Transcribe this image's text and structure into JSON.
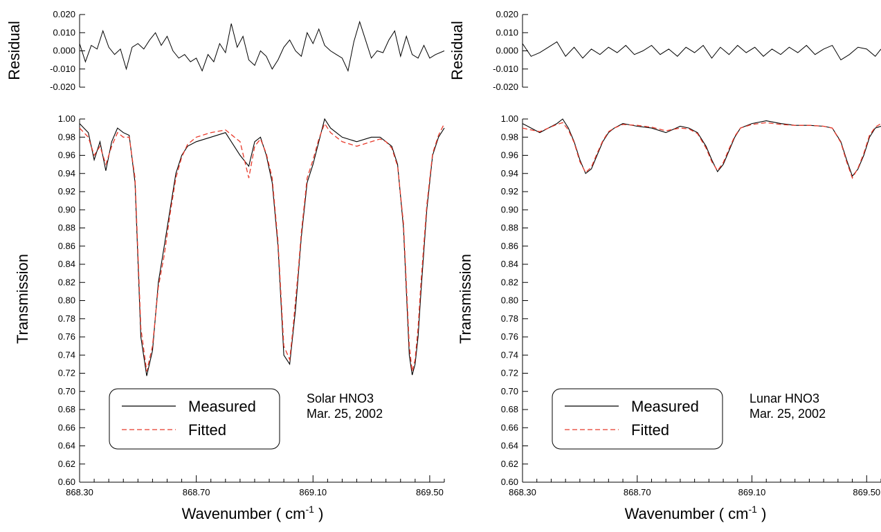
{
  "chart_data": [
    {
      "panel": "left",
      "type": "line",
      "xlabel": "Wavenumber",
      "xlabel_unit": "cm",
      "xlabel_unit_sup": "-1",
      "ylabel": "Transmission",
      "xlim": [
        868.3,
        869.55
      ],
      "ylim": [
        0.6,
        1.0
      ],
      "xticks": [
        "868.30",
        "868.70",
        "869.10",
        "869.50"
      ],
      "yticks": [
        "0.60",
        "0.62",
        "0.64",
        "0.66",
        "0.68",
        "0.70",
        "0.72",
        "0.74",
        "0.76",
        "0.78",
        "0.80",
        "0.82",
        "0.84",
        "0.86",
        "0.88",
        "0.90",
        "0.92",
        "0.94",
        "0.96",
        "0.98",
        "1.00"
      ],
      "annotation": [
        "Solar HNO3",
        "Mar. 25, 2002"
      ],
      "legend": {
        "position": "bottom-left",
        "entries": [
          "Measured",
          "Fitted"
        ]
      },
      "colors": {
        "measured": "#000000",
        "fitted": "#e8392a"
      },
      "series": [
        {
          "name": "Measured",
          "style": "solid",
          "x": [
            868.3,
            868.33,
            868.35,
            868.37,
            868.39,
            868.41,
            868.43,
            868.45,
            868.47,
            868.49,
            868.51,
            868.53,
            868.55,
            868.57,
            868.59,
            868.61,
            868.63,
            868.65,
            868.67,
            868.7,
            868.75,
            868.8,
            868.85,
            868.88,
            868.9,
            868.92,
            868.94,
            868.96,
            868.98,
            869.0,
            869.02,
            869.03,
            869.04,
            869.05,
            869.06,
            869.08,
            869.1,
            869.12,
            869.14,
            869.16,
            869.2,
            869.25,
            869.3,
            869.33,
            869.35,
            869.37,
            869.39,
            869.41,
            869.43,
            869.44,
            869.45,
            869.46,
            869.47,
            869.49,
            869.51,
            869.53,
            869.55
          ],
          "y": [
            0.995,
            0.985,
            0.955,
            0.975,
            0.943,
            0.975,
            0.99,
            0.985,
            0.982,
            0.93,
            0.76,
            0.717,
            0.745,
            0.82,
            0.86,
            0.9,
            0.94,
            0.96,
            0.97,
            0.975,
            0.98,
            0.985,
            0.96,
            0.948,
            0.975,
            0.98,
            0.96,
            0.93,
            0.86,
            0.74,
            0.73,
            0.76,
            0.79,
            0.83,
            0.87,
            0.93,
            0.95,
            0.975,
            1.0,
            0.99,
            0.98,
            0.975,
            0.98,
            0.98,
            0.975,
            0.97,
            0.95,
            0.88,
            0.74,
            0.718,
            0.73,
            0.76,
            0.81,
            0.9,
            0.96,
            0.98,
            0.99
          ]
        },
        {
          "name": "Fitted",
          "style": "dashed",
          "x": [
            868.3,
            868.33,
            868.35,
            868.37,
            868.39,
            868.41,
            868.43,
            868.45,
            868.47,
            868.49,
            868.51,
            868.53,
            868.55,
            868.57,
            868.59,
            868.61,
            868.63,
            868.65,
            868.67,
            868.7,
            868.75,
            868.8,
            868.85,
            868.88,
            868.9,
            868.92,
            868.94,
            868.96,
            868.98,
            869.0,
            869.02,
            869.03,
            869.04,
            869.05,
            869.06,
            869.08,
            869.1,
            869.12,
            869.14,
            869.16,
            869.2,
            869.25,
            869.3,
            869.33,
            869.35,
            869.37,
            869.39,
            869.41,
            869.43,
            869.44,
            869.45,
            869.46,
            869.47,
            869.49,
            869.51,
            869.53,
            869.55
          ],
          "y": [
            0.99,
            0.98,
            0.96,
            0.97,
            0.95,
            0.97,
            0.985,
            0.98,
            0.98,
            0.935,
            0.77,
            0.722,
            0.75,
            0.815,
            0.85,
            0.895,
            0.935,
            0.958,
            0.972,
            0.98,
            0.985,
            0.988,
            0.975,
            0.935,
            0.97,
            0.978,
            0.962,
            0.935,
            0.865,
            0.75,
            0.735,
            0.765,
            0.8,
            0.835,
            0.875,
            0.935,
            0.955,
            0.978,
            0.995,
            0.985,
            0.975,
            0.97,
            0.975,
            0.978,
            0.975,
            0.968,
            0.948,
            0.885,
            0.75,
            0.722,
            0.735,
            0.77,
            0.82,
            0.905,
            0.962,
            0.982,
            0.995
          ]
        }
      ],
      "residual": {
        "ylabel": "Residual",
        "ylim": [
          -0.02,
          0.02
        ],
        "yticks": [
          "-0.020",
          "-0.010",
          "0.000",
          "0.010",
          "0.020"
        ],
        "x": [
          868.3,
          868.32,
          868.34,
          868.36,
          868.38,
          868.4,
          868.42,
          868.44,
          868.46,
          868.48,
          868.5,
          868.52,
          868.54,
          868.56,
          868.58,
          868.6,
          868.62,
          868.64,
          868.66,
          868.68,
          868.7,
          868.72,
          868.74,
          868.76,
          868.78,
          868.8,
          868.82,
          868.84,
          868.86,
          868.88,
          868.9,
          868.92,
          868.94,
          868.96,
          868.98,
          869.0,
          869.02,
          869.04,
          869.06,
          869.08,
          869.1,
          869.12,
          869.14,
          869.16,
          869.18,
          869.2,
          869.22,
          869.24,
          869.26,
          869.28,
          869.3,
          869.32,
          869.34,
          869.36,
          869.38,
          869.4,
          869.42,
          869.44,
          869.46,
          869.48,
          869.5,
          869.52,
          869.55
        ],
        "y": [
          0.004,
          -0.006,
          0.003,
          0.001,
          0.011,
          0.002,
          -0.002,
          0.001,
          -0.01,
          0.002,
          0.004,
          0.001,
          0.006,
          0.01,
          0.003,
          0.008,
          0.0,
          -0.004,
          -0.002,
          -0.006,
          -0.004,
          -0.011,
          -0.002,
          -0.006,
          0.004,
          -0.001,
          0.015,
          0.002,
          0.008,
          -0.005,
          -0.008,
          0.0,
          -0.003,
          -0.01,
          -0.005,
          0.002,
          0.006,
          0.0,
          -0.003,
          0.01,
          0.004,
          0.012,
          0.003,
          0.0,
          -0.002,
          -0.004,
          -0.011,
          0.005,
          0.016,
          0.006,
          -0.004,
          0.0,
          -0.001,
          0.006,
          0.011,
          -0.003,
          0.008,
          -0.002,
          -0.004,
          0.003,
          -0.004,
          -0.002,
          0.0
        ]
      }
    },
    {
      "panel": "right",
      "type": "line",
      "xlabel": "Wavenumber",
      "xlabel_unit": "cm",
      "xlabel_unit_sup": "-1",
      "ylabel": "Transmission",
      "xlim": [
        868.3,
        869.55
      ],
      "ylim": [
        0.6,
        1.0
      ],
      "xticks": [
        "868.30",
        "868.70",
        "869.10",
        "869.50"
      ],
      "yticks": [
        "0.60",
        "0.62",
        "0.64",
        "0.66",
        "0.68",
        "0.70",
        "0.72",
        "0.74",
        "0.76",
        "0.78",
        "0.80",
        "0.82",
        "0.84",
        "0.86",
        "0.88",
        "0.90",
        "0.92",
        "0.94",
        "0.96",
        "0.98",
        "1.00"
      ],
      "annotation": [
        "Lunar HNO3",
        "Mar. 25, 2002"
      ],
      "legend": {
        "position": "bottom-left",
        "entries": [
          "Measured",
          "Fitted"
        ]
      },
      "colors": {
        "measured": "#000000",
        "fitted": "#e8392a"
      },
      "series": [
        {
          "name": "Measured",
          "style": "solid",
          "x": [
            868.3,
            868.33,
            868.36,
            868.39,
            868.42,
            868.44,
            868.46,
            868.48,
            868.5,
            868.52,
            868.54,
            868.56,
            868.58,
            868.6,
            868.62,
            868.65,
            868.7,
            868.75,
            868.8,
            868.85,
            868.88,
            868.91,
            868.94,
            868.96,
            868.98,
            869.0,
            869.02,
            869.04,
            869.06,
            869.1,
            869.15,
            869.2,
            869.25,
            869.3,
            869.35,
            869.38,
            869.41,
            869.43,
            869.45,
            869.47,
            869.49,
            869.51,
            869.53,
            869.55
          ],
          "y": [
            0.995,
            0.99,
            0.985,
            0.99,
            0.995,
            1.0,
            0.99,
            0.975,
            0.955,
            0.94,
            0.945,
            0.96,
            0.975,
            0.985,
            0.99,
            0.995,
            0.992,
            0.99,
            0.985,
            0.992,
            0.99,
            0.985,
            0.97,
            0.955,
            0.942,
            0.95,
            0.965,
            0.98,
            0.99,
            0.995,
            0.998,
            0.995,
            0.993,
            0.993,
            0.992,
            0.99,
            0.975,
            0.955,
            0.937,
            0.945,
            0.96,
            0.98,
            0.99,
            0.992
          ]
        },
        {
          "name": "Fitted",
          "style": "dashed",
          "x": [
            868.3,
            868.33,
            868.36,
            868.39,
            868.42,
            868.44,
            868.46,
            868.48,
            868.5,
            868.52,
            868.54,
            868.56,
            868.58,
            868.6,
            868.62,
            868.65,
            868.7,
            868.75,
            868.8,
            868.85,
            868.88,
            868.91,
            868.94,
            868.96,
            868.98,
            869.0,
            869.02,
            869.04,
            869.06,
            869.1,
            869.15,
            869.2,
            869.25,
            869.3,
            869.35,
            869.38,
            869.41,
            869.43,
            869.45,
            869.47,
            869.49,
            869.51,
            869.53,
            869.55
          ],
          "y": [
            0.99,
            0.988,
            0.986,
            0.99,
            0.994,
            0.996,
            0.988,
            0.974,
            0.953,
            0.941,
            0.947,
            0.962,
            0.976,
            0.986,
            0.99,
            0.994,
            0.993,
            0.991,
            0.987,
            0.99,
            0.989,
            0.984,
            0.968,
            0.953,
            0.943,
            0.952,
            0.967,
            0.981,
            0.99,
            0.994,
            0.996,
            0.994,
            0.993,
            0.993,
            0.992,
            0.99,
            0.974,
            0.953,
            0.935,
            0.946,
            0.962,
            0.982,
            0.991,
            0.995
          ]
        }
      ],
      "residual": {
        "ylabel": "Residual",
        "ylim": [
          -0.02,
          0.02
        ],
        "yticks": [
          "-0.020",
          "-0.010",
          "0.000",
          "0.010",
          "0.020"
        ],
        "x": [
          868.3,
          868.33,
          868.36,
          868.39,
          868.42,
          868.45,
          868.48,
          868.51,
          868.54,
          868.57,
          868.6,
          868.63,
          868.66,
          868.69,
          868.72,
          868.75,
          868.78,
          868.81,
          868.84,
          868.87,
          868.9,
          868.93,
          868.96,
          868.99,
          869.02,
          869.05,
          869.08,
          869.11,
          869.14,
          869.17,
          869.2,
          869.23,
          869.26,
          869.29,
          869.32,
          869.35,
          869.38,
          869.41,
          869.44,
          869.47,
          869.5,
          869.53,
          869.55
        ],
        "y": [
          0.004,
          -0.003,
          -0.001,
          0.002,
          0.005,
          -0.003,
          0.002,
          -0.004,
          0.001,
          -0.002,
          0.002,
          -0.001,
          0.003,
          -0.002,
          0.0,
          0.003,
          -0.002,
          0.001,
          -0.003,
          0.002,
          -0.001,
          0.003,
          -0.004,
          0.002,
          -0.002,
          0.003,
          -0.001,
          0.002,
          -0.003,
          0.001,
          -0.002,
          0.002,
          -0.001,
          0.003,
          -0.002,
          0.001,
          0.003,
          -0.005,
          -0.002,
          0.002,
          0.001,
          -0.003,
          0.001
        ]
      }
    }
  ]
}
